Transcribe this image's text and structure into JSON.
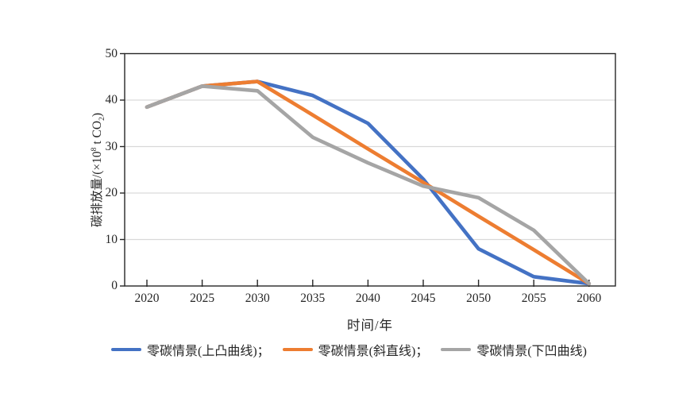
{
  "chart_data": {
    "type": "line",
    "title": "",
    "x": [
      2020,
      2025,
      2030,
      2035,
      2040,
      2045,
      2050,
      2055,
      2060
    ],
    "xlabel": "时间/年",
    "ylabel": "碳排放量/(×10⁸ t CO₂)",
    "ylim": [
      0,
      50
    ],
    "yticks": [
      0,
      10,
      20,
      30,
      40,
      50
    ],
    "grid": true,
    "legend_position": "bottom",
    "series": [
      {
        "name": "零碳情景(上凸曲线)",
        "color": "#4472C4",
        "values": [
          38.5,
          43,
          44,
          41,
          35,
          23,
          8,
          2,
          0.5
        ]
      },
      {
        "name": "零碳情景(斜直线)",
        "color": "#ED7D31",
        "values": [
          38.5,
          43,
          44,
          36.8,
          29.5,
          22.3,
          15,
          7.8,
          0.5
        ]
      },
      {
        "name": "零碳情景(下凹曲线)",
        "color": "#A5A5A5",
        "values": [
          38.5,
          43,
          42,
          32,
          26.5,
          21.5,
          19,
          12,
          0.5
        ]
      }
    ]
  },
  "x_axis": {
    "label": "时间/年"
  },
  "y_axis": {
    "label_prefix": "碳排放量/(×10",
    "label_sup": "8",
    "label_mid": " t CO",
    "label_sub": "2",
    "label_suffix": ")"
  },
  "legend": {
    "items": [
      {
        "label": "零碳情景(上凸曲线)；",
        "color": "#4472C4"
      },
      {
        "label": "零碳情景(斜直线)；",
        "color": "#ED7D31"
      },
      {
        "label": "零碳情景(下凹曲线)",
        "color": "#A5A5A5"
      }
    ]
  },
  "colors": {
    "axis": "#262626",
    "gridline": "#d9d9d9",
    "background": "#ffffff"
  }
}
